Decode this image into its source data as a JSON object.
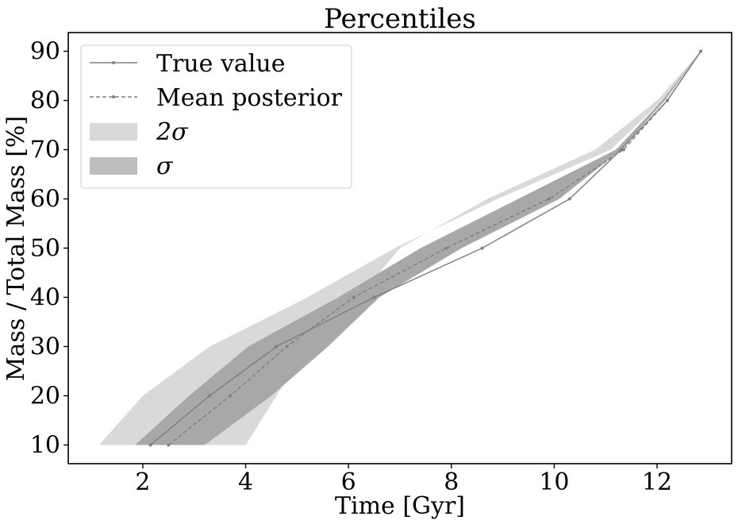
{
  "chart_data": {
    "type": "line",
    "title": "Percentiles",
    "xlabel": "Time [Gyr]",
    "ylabel": "Mass / Total Mass [%]",
    "xlim": [
      0.55,
      13.45
    ],
    "ylim": [
      6.2,
      93.8
    ],
    "xticks": [
      2,
      4,
      6,
      8,
      10,
      12
    ],
    "yticks": [
      10,
      20,
      30,
      40,
      50,
      60,
      70,
      80,
      90
    ],
    "grid": false,
    "legend": {
      "placement": "top-left",
      "entries": [
        "True value",
        "Mean posterior",
        "2σ",
        "σ"
      ]
    },
    "percentiles": [
      10,
      20,
      30,
      40,
      50,
      60,
      70,
      80,
      90
    ],
    "series": [
      {
        "name": "True value",
        "style": "solid",
        "color": "#808080",
        "x": [
          2.15,
          3.3,
          4.6,
          6.5,
          8.6,
          10.3,
          11.3,
          12.2,
          12.85
        ],
        "y": [
          10,
          20,
          30,
          40,
          50,
          60,
          70,
          80,
          90
        ]
      },
      {
        "name": "Mean posterior",
        "style": "dashed",
        "color": "#808080",
        "x": [
          2.5,
          3.7,
          4.8,
          6.1,
          7.9,
          9.9,
          11.35,
          12.2,
          12.85
        ],
        "y": [
          10,
          20,
          30,
          40,
          50,
          60,
          70,
          80,
          90
        ]
      }
    ],
    "bands": [
      {
        "name": "2σ",
        "color": "#d9d9d9",
        "lower_x": [
          4.0,
          4.6,
          5.2,
          6.2,
          7.0,
          8.7,
          10.8,
          12.0,
          12.85
        ],
        "upper_x": [
          1.15,
          2.0,
          3.3,
          5.2,
          6.9,
          8.9,
          11.1,
          12.1,
          12.85
        ],
        "y": [
          10,
          20,
          30,
          40,
          50,
          60,
          70,
          80,
          90
        ]
      },
      {
        "name": "σ",
        "color": "#a8a8a8",
        "lower_x": [
          3.2,
          4.5,
          5.6,
          6.6,
          8.2,
          10.1,
          11.3,
          12.15,
          12.85
        ],
        "upper_x": [
          1.85,
          2.9,
          4.05,
          5.8,
          7.4,
          9.3,
          11.2,
          12.1,
          12.85
        ],
        "y": [
          10,
          20,
          30,
          40,
          50,
          60,
          70,
          80,
          90
        ]
      }
    ]
  },
  "colors": {
    "line": "#808080",
    "band_2sigma": "#d9d9d9",
    "band_1sigma": "#a8a8a8",
    "legend_band_1sigma": "#bdbdbd",
    "axes": "#000000"
  }
}
